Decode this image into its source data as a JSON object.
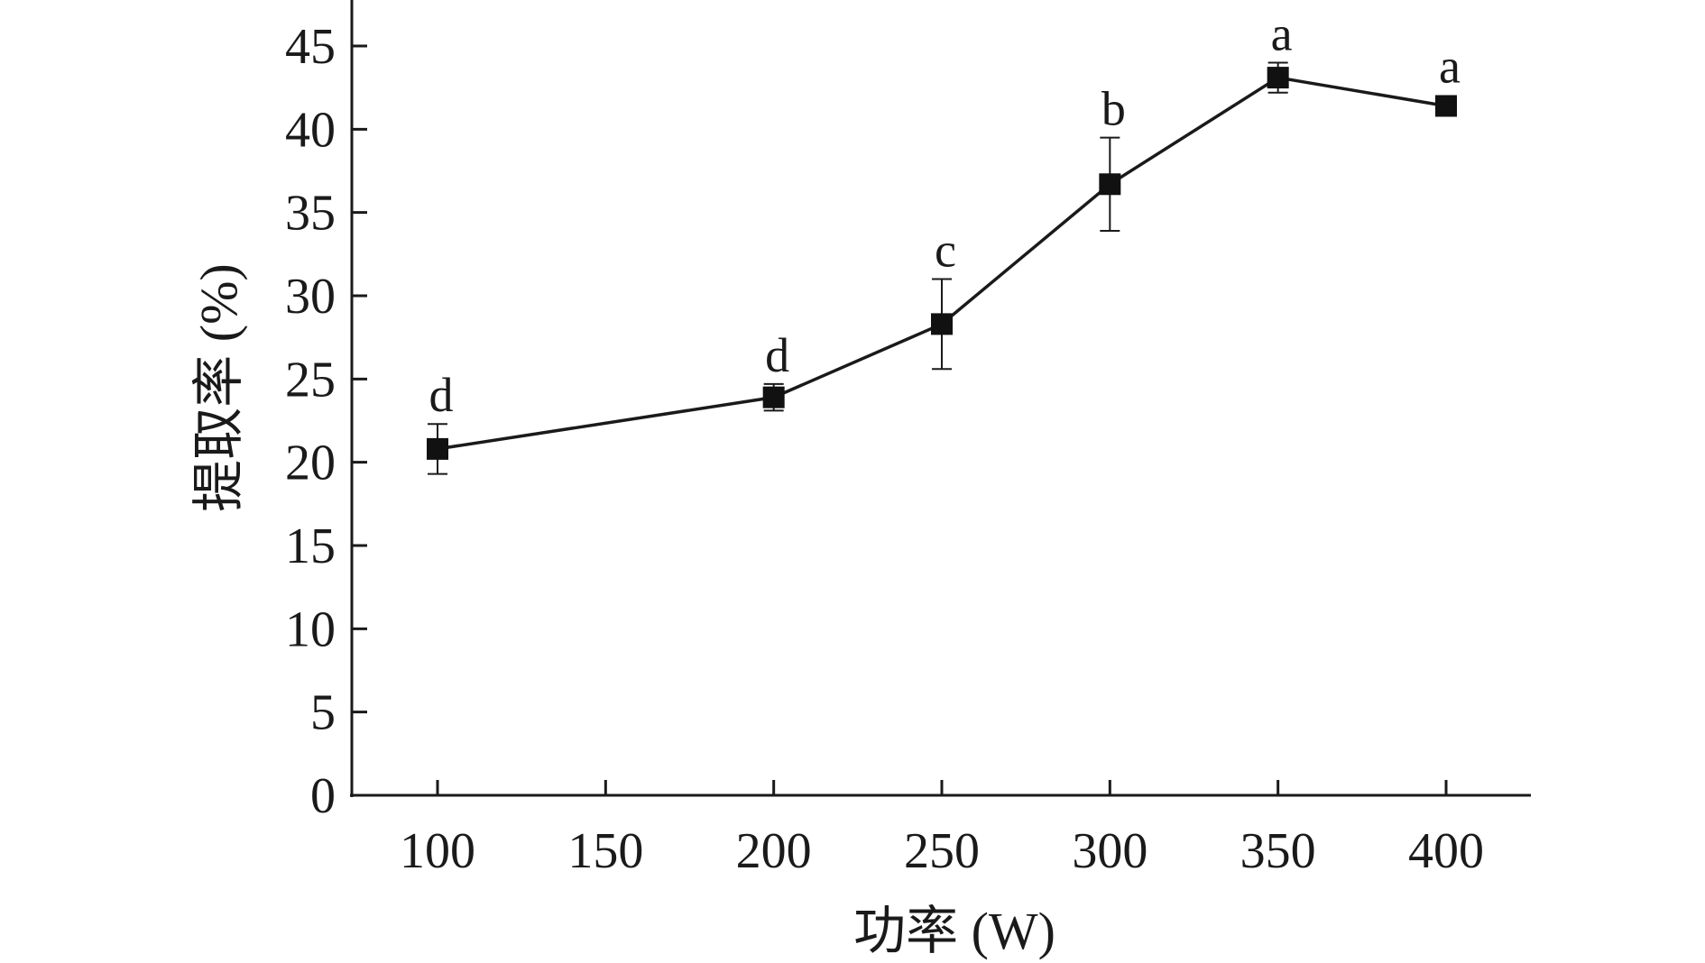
{
  "chart_data": {
    "type": "line",
    "title": "",
    "xlabel": "功率 (W)",
    "ylabel": "提取率 (%)",
    "xlim": [
      75,
      425
    ],
    "ylim": [
      0,
      47
    ],
    "x_ticks": [
      100,
      150,
      200,
      250,
      300,
      350,
      400
    ],
    "y_ticks": [
      0,
      5,
      10,
      15,
      20,
      25,
      30,
      35,
      40,
      45
    ],
    "grid": false,
    "marker": "square",
    "color": "#1a1a1a",
    "series": [
      {
        "x": [
          100,
          200,
          250,
          300,
          350,
          400
        ],
        "y": [
          20.8,
          23.9,
          28.3,
          36.7,
          43.1,
          41.4
        ],
        "error": [
          1.5,
          0.8,
          2.7,
          2.8,
          0.9,
          0.3
        ],
        "labels": [
          "d",
          "d",
          "c",
          "b",
          "a",
          "a"
        ]
      }
    ]
  }
}
